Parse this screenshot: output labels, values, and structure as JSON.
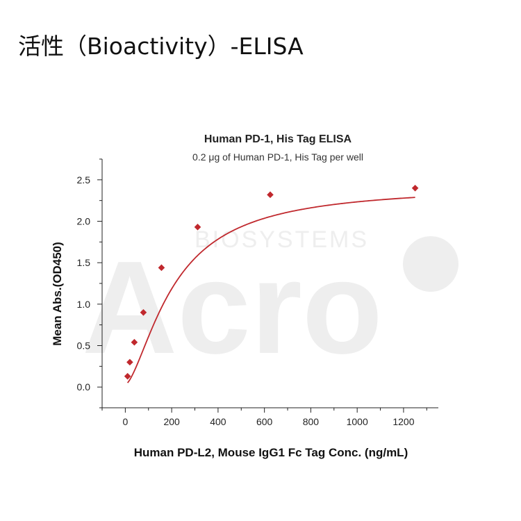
{
  "heading": "活性（Bioactivity）-ELISA",
  "watermark": {
    "brand": "Acro",
    "tagline": "BIOSYSTEMS"
  },
  "colors": {
    "series": "#c0282d",
    "axis": "#222222",
    "watermark": "#eeeeee"
  },
  "chart_data": {
    "type": "scatter",
    "title": "Human PD-1, His Tag ELISA",
    "subtitle": "0.2 μg of Human PD-1, His Tag per well",
    "xlabel": "Human PD-L2, Mouse IgG1 Fc Tag Conc. (ng/mL)",
    "ylabel": "Mean Abs.(OD450)",
    "xlim": [
      -100,
      1350
    ],
    "ylim": [
      -0.25,
      2.75
    ],
    "x_ticks": [
      0,
      200,
      400,
      600,
      800,
      1000,
      1200
    ],
    "y_ticks": [
      0.0,
      0.5,
      1.0,
      1.5,
      2.0,
      2.5
    ],
    "y_tick_labels": [
      "0.0",
      "0.5",
      "1.0",
      "1.5",
      "2.0",
      "2.5"
    ],
    "grid": false,
    "legend": "none",
    "marker": "diamond",
    "fit": "four-parameter logistic curve",
    "series": [
      {
        "x": [
          9.8,
          19.5,
          39,
          78,
          156,
          312,
          625,
          1250
        ],
        "y": [
          0.13,
          0.3,
          0.54,
          0.9,
          1.44,
          1.93,
          2.32,
          2.4
        ]
      }
    ]
  }
}
